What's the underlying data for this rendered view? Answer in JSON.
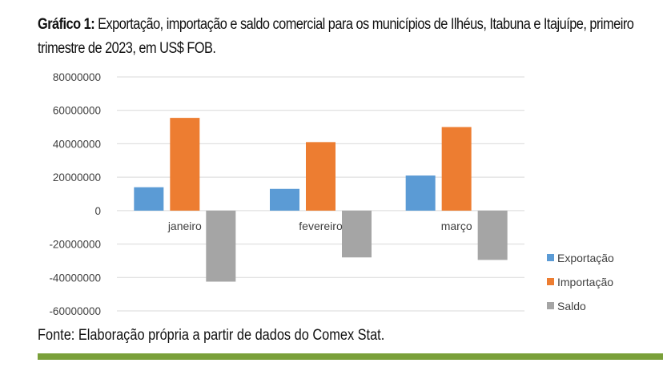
{
  "caption": {
    "prefix": "Gráfico 1:",
    "text": " Exportação, importação e saldo comercial para os municípios de Ilhéus, Itabuna e Itajuípe, primeiro trimestre de 2023, em US$ FOB."
  },
  "source": "Fonte: Elaboração própria a partir de dados do Comex Stat.",
  "colors": {
    "exportacao": "#5b9bd5",
    "importacao": "#ed7d31",
    "saldo": "#a5a5a5",
    "grid": "#d9d9d9",
    "footer_bar": "#7aa03a"
  },
  "chart_data": {
    "type": "bar",
    "title": "",
    "xlabel": "",
    "ylabel": "",
    "categories": [
      "janeiro",
      "fevereiro",
      "março"
    ],
    "series": [
      {
        "name": "Exportação",
        "values": [
          14000000,
          13000000,
          21000000
        ]
      },
      {
        "name": "Importação",
        "values": [
          55500000,
          41000000,
          50000000
        ]
      },
      {
        "name": "Saldo",
        "values": [
          -42500000,
          -28000000,
          -29500000
        ]
      }
    ],
    "ylim": [
      -60000000,
      80000000
    ],
    "yticks": [
      "80000000",
      "60000000",
      "40000000",
      "20000000",
      "0",
      "-20000000",
      "-40000000",
      "-60000000"
    ],
    "grid": true,
    "legend_position": "bottom-right"
  }
}
